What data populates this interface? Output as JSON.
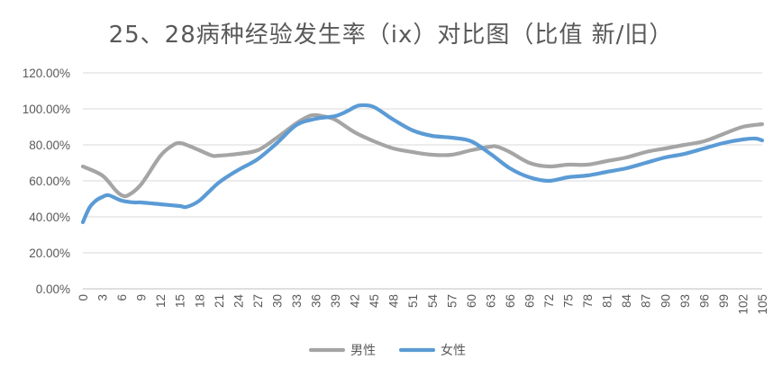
{
  "chart_data": {
    "type": "line",
    "title": "25、28病种经验发生率（ix）对比图（比值 新/旧）",
    "xlabel": "",
    "ylabel": "",
    "ylim": [
      0,
      1.2
    ],
    "yticks": [
      0,
      0.2,
      0.4,
      0.6,
      0.8,
      1.0,
      1.2
    ],
    "ytick_labels": [
      "0.00%",
      "20.00%",
      "40.00%",
      "60.00%",
      "80.00%",
      "100.00%",
      "120.00%"
    ],
    "xlim": [
      0,
      105
    ],
    "xticks": [
      0,
      3,
      6,
      9,
      12,
      15,
      18,
      21,
      24,
      27,
      30,
      33,
      36,
      39,
      42,
      45,
      48,
      51,
      54,
      57,
      60,
      63,
      66,
      69,
      72,
      75,
      78,
      81,
      84,
      87,
      90,
      93,
      96,
      99,
      102,
      105
    ],
    "grid": true,
    "legend_position": "bottom",
    "series": [
      {
        "name": "男性",
        "color": "#A5A5A5",
        "x": [
          0,
          3,
          5,
          6,
          7,
          9,
          12,
          14,
          15,
          16,
          18,
          20,
          21,
          24,
          27,
          30,
          33,
          35,
          36,
          37,
          39,
          42,
          45,
          48,
          51,
          54,
          57,
          60,
          63,
          64,
          66,
          69,
          72,
          75,
          78,
          81,
          84,
          87,
          90,
          93,
          96,
          99,
          102,
          105
        ],
        "values": [
          0.68,
          0.63,
          0.55,
          0.52,
          0.52,
          0.58,
          0.74,
          0.8,
          0.81,
          0.8,
          0.77,
          0.74,
          0.74,
          0.75,
          0.77,
          0.84,
          0.92,
          0.96,
          0.965,
          0.96,
          0.94,
          0.87,
          0.82,
          0.78,
          0.76,
          0.745,
          0.745,
          0.77,
          0.79,
          0.79,
          0.76,
          0.7,
          0.68,
          0.69,
          0.69,
          0.71,
          0.73,
          0.76,
          0.78,
          0.8,
          0.82,
          0.86,
          0.9,
          0.915
        ]
      },
      {
        "name": "女性",
        "color": "#5B9BD5",
        "x": [
          0,
          1,
          2,
          3,
          4,
          6,
          8,
          9,
          12,
          15,
          16,
          18,
          21,
          24,
          27,
          30,
          33,
          36,
          39,
          41,
          42,
          43,
          45,
          48,
          51,
          54,
          57,
          60,
          63,
          66,
          69,
          72,
          75,
          78,
          81,
          84,
          87,
          90,
          93,
          96,
          99,
          102,
          104,
          105
        ],
        "values": [
          0.37,
          0.45,
          0.49,
          0.51,
          0.52,
          0.49,
          0.48,
          0.48,
          0.47,
          0.46,
          0.455,
          0.49,
          0.59,
          0.66,
          0.72,
          0.81,
          0.91,
          0.945,
          0.96,
          0.99,
          1.01,
          1.02,
          1.01,
          0.94,
          0.88,
          0.85,
          0.84,
          0.82,
          0.75,
          0.67,
          0.62,
          0.6,
          0.62,
          0.63,
          0.65,
          0.67,
          0.7,
          0.73,
          0.75,
          0.78,
          0.81,
          0.83,
          0.835,
          0.825
        ]
      }
    ]
  }
}
